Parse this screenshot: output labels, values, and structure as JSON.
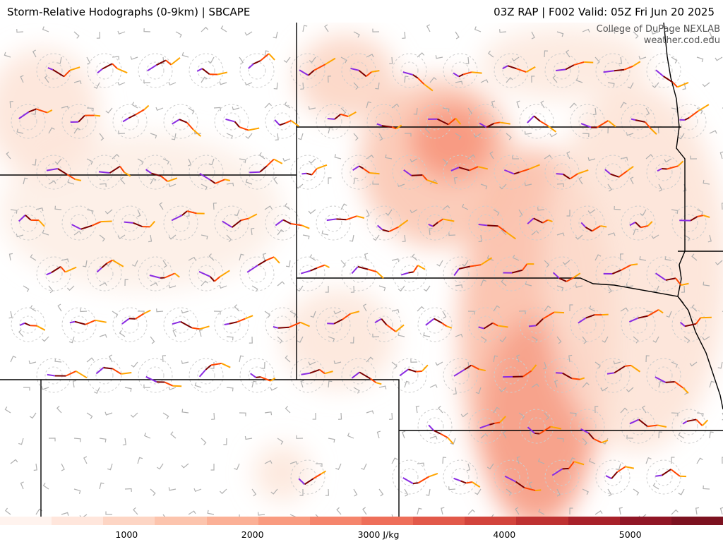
{
  "header": {
    "title_left": "Storm-Relative Hodographs (0-9km) | SBCAPE",
    "title_right": "03Z RAP | F002 Valid: 05Z Fri Jun 20 2025"
  },
  "credit": {
    "line1": "College of DuPage NEXLAB",
    "line2": "weather.cod.edu"
  },
  "colors": {
    "hodo_low": "#8a2be2",
    "hodo_mid1": "#7a0000",
    "hodo_mid2": "#ff4500",
    "hodo_high": "#ffa500",
    "state_border": "#000000",
    "barb": "#b0b0b0",
    "ring": "#cccccc"
  },
  "colorbar": {
    "units_label": "3000 J/kg",
    "ticks": [
      "1000",
      "2000",
      "3000 J/kg",
      "4000",
      "5000"
    ],
    "tick_values": [
      1000,
      2000,
      3000,
      4000,
      5000
    ],
    "range": [
      0,
      6000
    ],
    "colors": [
      "#fff3ee",
      "#ffe6dc",
      "#fdd5c4",
      "#fcc4ad",
      "#fbb096",
      "#f99b80",
      "#f5856c",
      "#ee6f5a",
      "#e2594a",
      "#d2443c",
      "#be3131",
      "#a8212a",
      "#901626",
      "#7c1220"
    ]
  }
}
